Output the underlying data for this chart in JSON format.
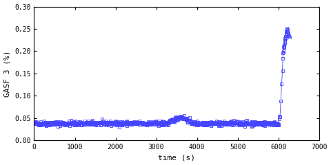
{
  "title": "",
  "xlabel": "time (s)",
  "ylabel": "GASF 3 (%)",
  "xlim": [
    0,
    7000
  ],
  "ylim": [
    0,
    0.3
  ],
  "xticks": [
    0,
    1000,
    2000,
    3000,
    4000,
    5000,
    6000,
    7000
  ],
  "yticks": [
    0,
    0.05,
    0.1,
    0.15,
    0.2,
    0.25,
    0.3
  ],
  "line_color": "#4444ff",
  "marker": "s",
  "markersize": 2.5,
  "linewidth": 0.6,
  "bg_color": "#ffffff",
  "font_family": "DejaVu Sans Mono"
}
